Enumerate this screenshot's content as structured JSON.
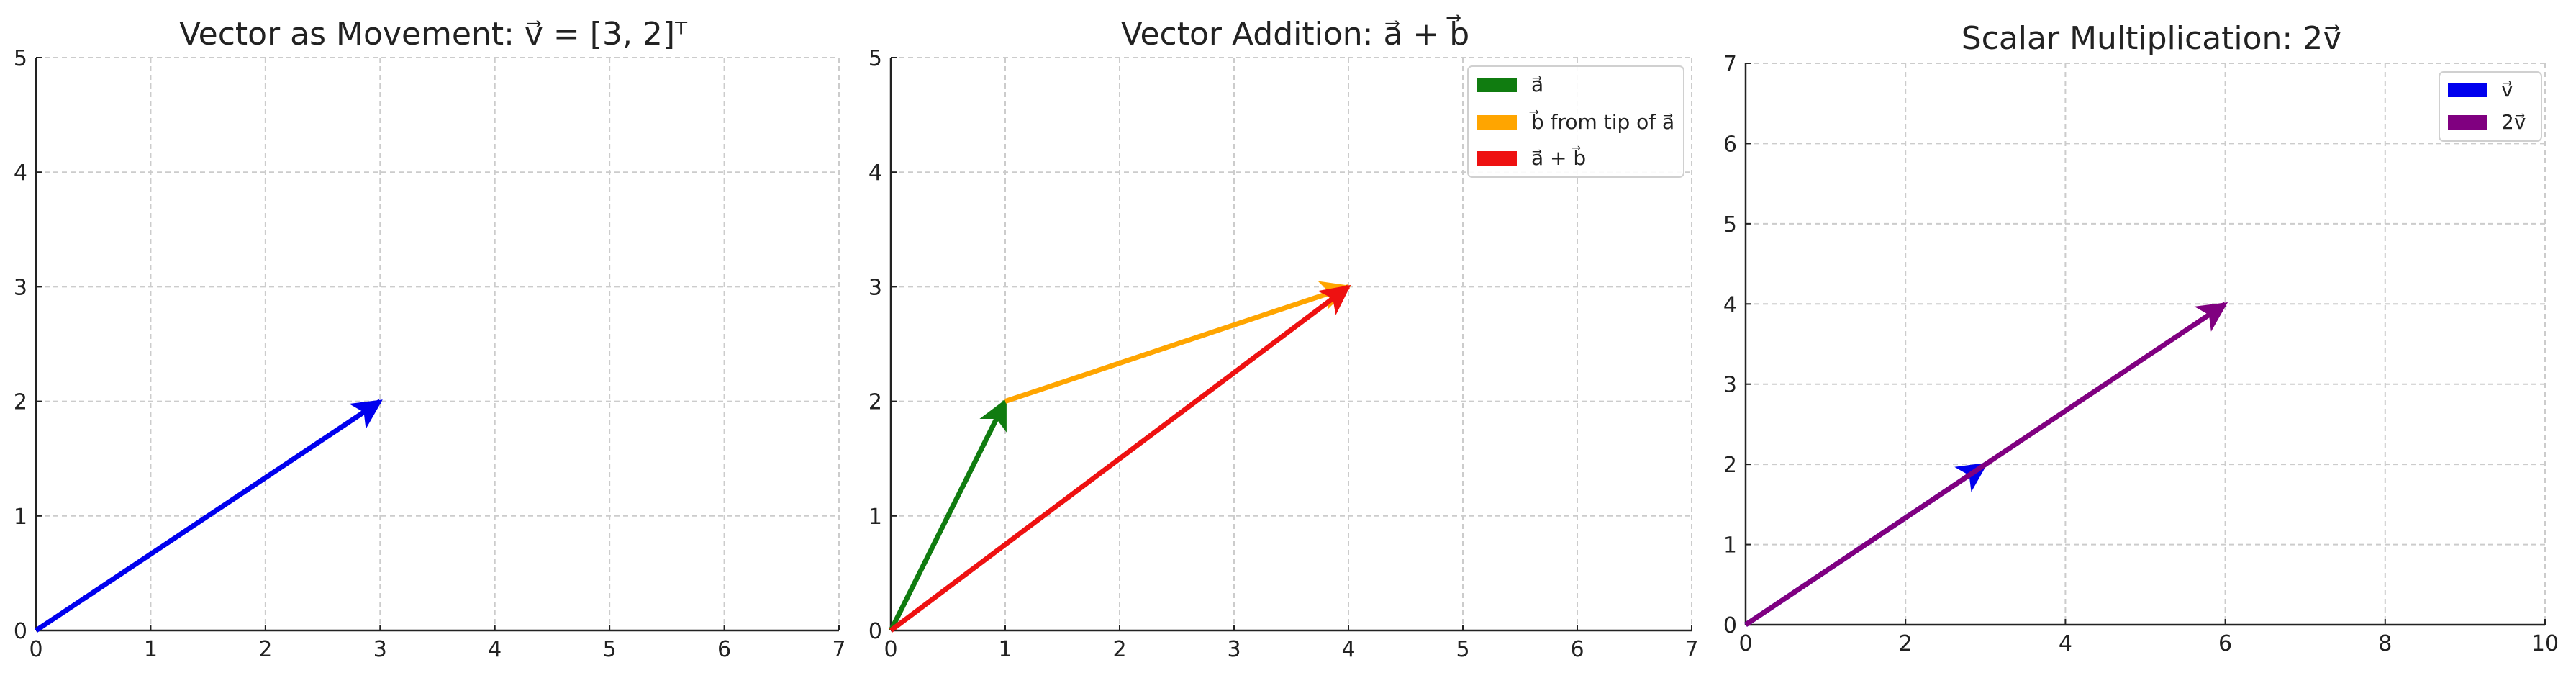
{
  "chart_data": [
    {
      "type": "vector",
      "title": "Vector as Movement: v⃗ = [3, 2]ᵀ",
      "xlim": [
        0,
        7
      ],
      "ylim": [
        0,
        5
      ],
      "xticks": [
        0,
        1,
        2,
        3,
        4,
        5,
        6,
        7
      ],
      "yticks": [
        0,
        1,
        2,
        3,
        4,
        5
      ],
      "grid": true,
      "legend": null,
      "vectors": [
        {
          "from": [
            0,
            0
          ],
          "to": [
            3,
            2
          ],
          "color": "#0000ee"
        }
      ]
    },
    {
      "type": "vector",
      "title": "Vector Addition: a⃗ + b⃗",
      "xlim": [
        0,
        7
      ],
      "ylim": [
        0,
        5
      ],
      "xticks": [
        0,
        1,
        2,
        3,
        4,
        5,
        6,
        7
      ],
      "yticks": [
        0,
        1,
        2,
        3,
        4,
        5
      ],
      "grid": true,
      "legend": "top-right",
      "vectors": [
        {
          "name": "a⃗",
          "from": [
            0,
            0
          ],
          "to": [
            1,
            2
          ],
          "color": "#107c10"
        },
        {
          "name": "b⃗ from tip of a⃗",
          "from": [
            1,
            2
          ],
          "to": [
            4,
            3
          ],
          "color": "#ffa500"
        },
        {
          "name": "a⃗ + b⃗",
          "from": [
            0,
            0
          ],
          "to": [
            4,
            3
          ],
          "color": "#ee1111"
        }
      ]
    },
    {
      "type": "vector",
      "title": "Scalar Multiplication: 2v⃗",
      "xlim": [
        0,
        10
      ],
      "ylim": [
        0,
        7
      ],
      "xticks": [
        0,
        2,
        4,
        6,
        8,
        10
      ],
      "yticks": [
        0,
        1,
        2,
        3,
        4,
        5,
        6,
        7
      ],
      "grid": true,
      "legend": "top-right",
      "vectors": [
        {
          "name": "v⃗",
          "from": [
            0,
            0
          ],
          "to": [
            3,
            2
          ],
          "color": "#0000ee"
        },
        {
          "name": "2v⃗",
          "from": [
            0,
            0
          ],
          "to": [
            6,
            4
          ],
          "color": "#800080"
        }
      ]
    }
  ]
}
